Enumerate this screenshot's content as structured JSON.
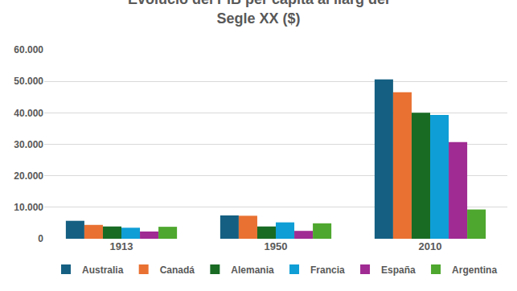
{
  "chart_data": {
    "type": "bar",
    "title": "Evolució del PIB per càpita al llarg del Segle XX ($)",
    "categories": [
      "1913",
      "1950",
      "2010"
    ],
    "series": [
      {
        "name": "Australia",
        "color": "#156082",
        "values": [
          5700,
          7400,
          50600
        ]
      },
      {
        "name": "Canadá",
        "color": "#E97132",
        "values": [
          4400,
          7300,
          46500
        ]
      },
      {
        "name": "Alemania",
        "color": "#196B24",
        "values": [
          3900,
          3900,
          40000
        ]
      },
      {
        "name": "Francia",
        "color": "#0F9ED5",
        "values": [
          3500,
          5200,
          39300
        ]
      },
      {
        "name": "España",
        "color": "#A02B93",
        "values": [
          2300,
          2500,
          30700
        ]
      },
      {
        "name": "Argentina",
        "color": "#4EA72E",
        "values": [
          3800,
          4900,
          9300
        ]
      }
    ],
    "ylim": [
      0,
      60000
    ],
    "yticks": [
      0,
      {
        "value": 10000,
        "label": "10.000"
      },
      {
        "value": 20000,
        "label": "20.000"
      },
      {
        "value": 30000,
        "label": "30.000"
      },
      {
        "value": 40000,
        "label": "40.000"
      },
      {
        "value": 50000,
        "label": "50.000"
      },
      {
        "value": 60000,
        "label": "60.000"
      }
    ],
    "grid": true,
    "legend": "bottom"
  }
}
